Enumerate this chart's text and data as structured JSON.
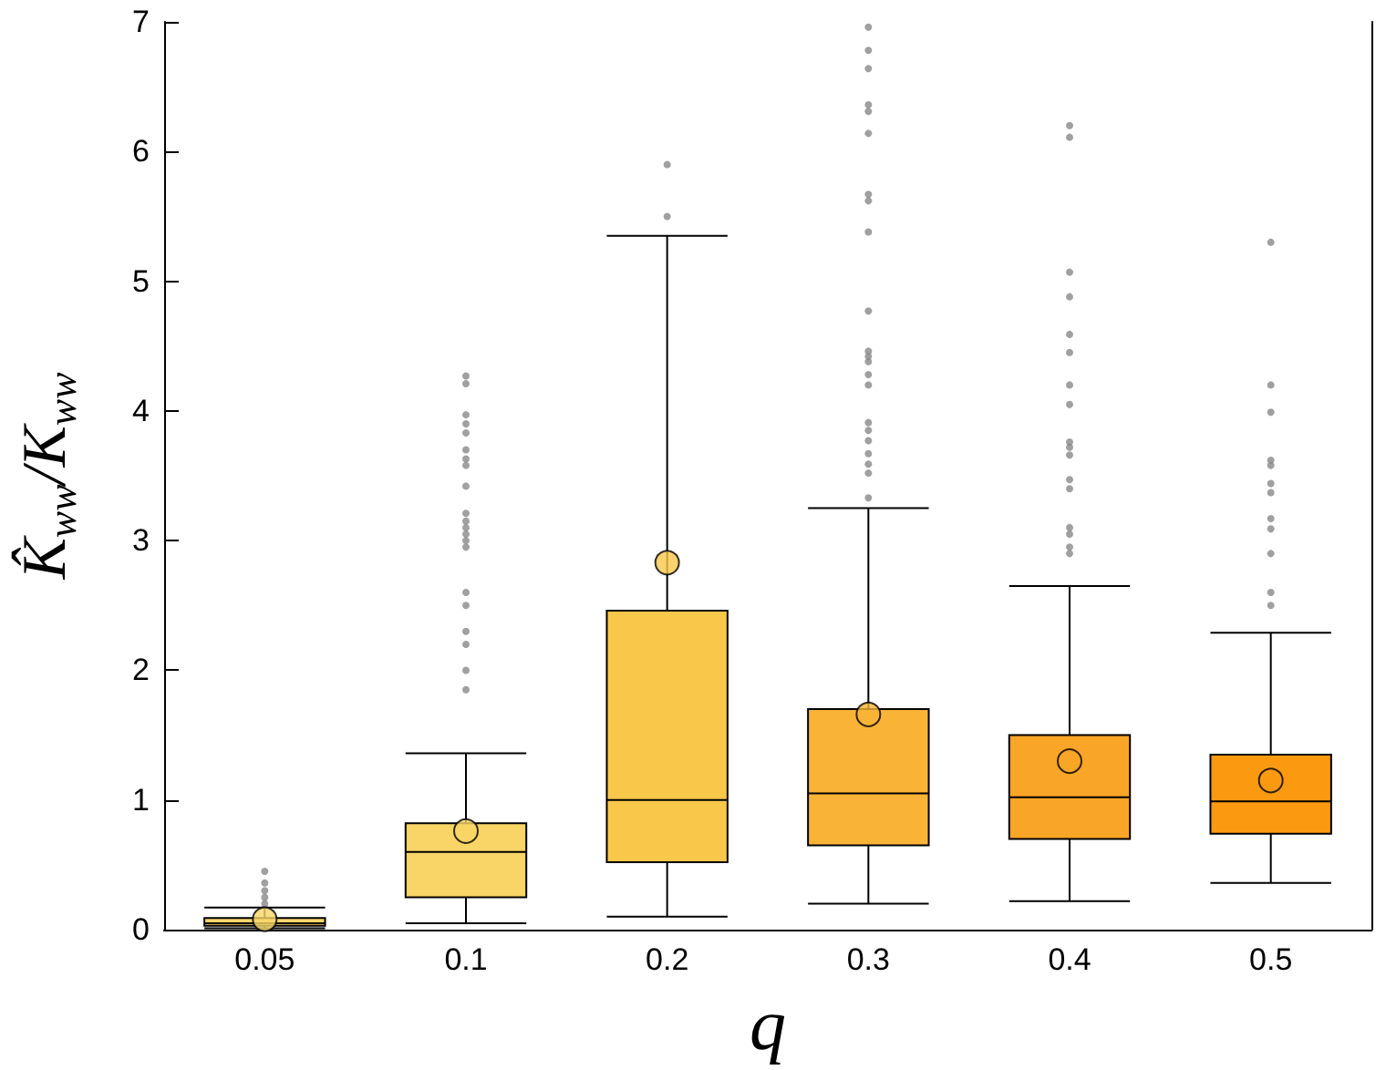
{
  "chart_data": {
    "type": "box",
    "xlabel": "q",
    "ylabel": "K̂$_{ww}$/K$_{ww}$",
    "categories": [
      "0.05",
      "0.1",
      "0.2",
      "0.3",
      "0.4",
      "0.5"
    ],
    "colors": [
      "#f8d66a",
      "#f9d466",
      "#f9c74a",
      "#f9b437",
      "#f9a527",
      "#fb9a11"
    ],
    "boxes": [
      {
        "low": 0.01,
        "q1": 0.03,
        "median": 0.05,
        "q3": 0.09,
        "high": 0.17,
        "mean": 0.08,
        "outliers": [
          0.2,
          0.25,
          0.3,
          0.36,
          0.45
        ]
      },
      {
        "low": 0.05,
        "q1": 0.25,
        "median": 0.6,
        "q3": 0.82,
        "high": 1.36,
        "mean": 0.76,
        "outliers": [
          4.27,
          4.21,
          3.97,
          3.9,
          3.83,
          3.7,
          3.63,
          3.58,
          3.42,
          3.21,
          3.15,
          3.1,
          3.05,
          3.0,
          2.95,
          2.6,
          2.5,
          2.3,
          2.2,
          2.0,
          1.85
        ]
      },
      {
        "low": 0.1,
        "q1": 0.52,
        "median": 1.0,
        "q3": 2.46,
        "high": 5.35,
        "mean": 2.83,
        "outliers": [
          5.9,
          5.5
        ]
      },
      {
        "low": 0.2,
        "q1": 0.65,
        "median": 1.05,
        "q3": 1.7,
        "high": 3.25,
        "mean": 1.66,
        "outliers": [
          6.96,
          6.78,
          6.64,
          6.36,
          6.31,
          6.14,
          5.67,
          5.62,
          5.38,
          4.77,
          4.46,
          4.42,
          4.38,
          4.28,
          4.2,
          3.91,
          3.85,
          3.77,
          3.67,
          3.59,
          3.52,
          3.33
        ]
      },
      {
        "low": 0.22,
        "q1": 0.7,
        "median": 1.02,
        "q3": 1.5,
        "high": 2.65,
        "mean": 1.3,
        "outliers": [
          6.2,
          6.11,
          5.07,
          4.88,
          4.59,
          4.45,
          4.2,
          4.05,
          3.76,
          3.72,
          3.66,
          3.47,
          3.4,
          3.1,
          3.05,
          2.95,
          2.9
        ]
      },
      {
        "low": 0.36,
        "q1": 0.74,
        "median": 0.99,
        "q3": 1.35,
        "high": 2.29,
        "mean": 1.15,
        "outliers": [
          5.3,
          4.2,
          3.99,
          3.62,
          3.58,
          3.44,
          3.37,
          3.17,
          3.09,
          2.9,
          2.6,
          2.5
        ]
      }
    ],
    "ylim": [
      0,
      7
    ],
    "yticks": [
      0,
      1,
      2,
      3,
      4,
      5,
      6,
      7
    ],
    "marker": "circle"
  }
}
